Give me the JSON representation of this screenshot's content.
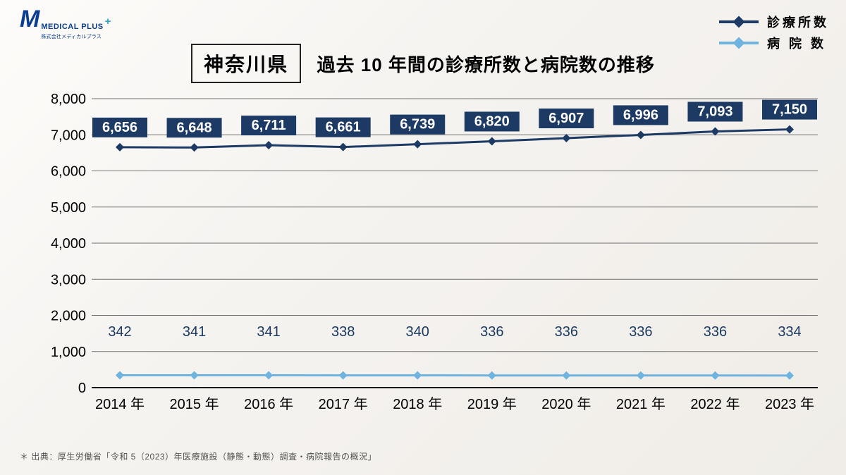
{
  "logo": {
    "mark": "M",
    "text": "MEDICAL PLUS",
    "plus": "+",
    "sub": "株式会社メディカルプラス"
  },
  "legend": {
    "series1": "診療所数",
    "series2": "病 院 数"
  },
  "title": {
    "prefecture": "神奈川県",
    "subtitle": "過去 10 年間の診療所数と病院数の推移"
  },
  "chart": {
    "type": "line",
    "ylim": [
      0,
      8000
    ],
    "ytick_step": 1000,
    "yticks": [
      "0",
      "1,000",
      "2,000",
      "3,000",
      "4,000",
      "5,000",
      "6,000",
      "7,000",
      "8,000"
    ],
    "x_categories": [
      "2014 年",
      "2015 年",
      "2016 年",
      "2017 年",
      "2018 年",
      "2019 年",
      "2020 年",
      "2021 年",
      "2022 年",
      "2023 年"
    ],
    "clinics": {
      "values": [
        6656,
        6648,
        6711,
        6661,
        6739,
        6820,
        6907,
        6996,
        7093,
        7150
      ],
      "labels": [
        "6,656",
        "6,648",
        "6,711",
        "6,661",
        "6,739",
        "6,820",
        "6,907",
        "6,996",
        "7,093",
        "7,150"
      ],
      "color": "#1c3a63",
      "label_bg": "#1c3a63",
      "label_fg": "#ffffff",
      "line_width": 3,
      "marker": "diamond",
      "marker_size": 10
    },
    "hospitals": {
      "values": [
        342,
        341,
        341,
        338,
        340,
        336,
        336,
        336,
        336,
        334
      ],
      "labels": [
        "342",
        "341",
        "341",
        "338",
        "340",
        "336",
        "336",
        "336",
        "336",
        "334"
      ],
      "color": "#6fb3e0",
      "label_fg": "#1c3a63",
      "line_width": 3,
      "marker": "diamond",
      "marker_size": 10
    },
    "grid_color": "#707070",
    "background": "transparent",
    "axis_fontsize": 20,
    "label_fontsize": 20
  },
  "footnote": "＊ 出典：厚生労働省「令和 5（2023）年医療施設（静態・動態）調査・病院報告の概況」"
}
